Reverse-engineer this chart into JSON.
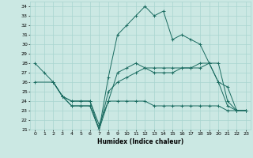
{
  "xlabel": "Humidex (Indice chaleur)",
  "bg_color": "#cbe8e3",
  "grid_color": "#a8d5cf",
  "line_color": "#1a6b60",
  "ylim": [
    21,
    34.5
  ],
  "xlim": [
    -0.5,
    23.5
  ],
  "yticks": [
    21,
    22,
    23,
    24,
    25,
    26,
    27,
    28,
    29,
    30,
    31,
    32,
    33,
    34
  ],
  "xticks": [
    0,
    1,
    2,
    3,
    4,
    5,
    6,
    7,
    8,
    9,
    10,
    11,
    12,
    13,
    14,
    15,
    16,
    17,
    18,
    19,
    20,
    21,
    22,
    23
  ],
  "series": [
    {
      "x": [
        0,
        1,
        2,
        3,
        4,
        5,
        6,
        7,
        8,
        9,
        10,
        11,
        12,
        13,
        14,
        15,
        16,
        17,
        18,
        19,
        20,
        21,
        22,
        23
      ],
      "y": [
        28,
        27,
        26,
        24.5,
        24,
        24,
        24,
        21,
        26.5,
        31,
        32,
        33,
        34,
        33,
        33.5,
        30.5,
        31,
        30.5,
        30,
        28,
        26,
        23.5,
        23,
        23
      ]
    },
    {
      "x": [
        0,
        2,
        3,
        4,
        5,
        6,
        7,
        8,
        9,
        10,
        11,
        12,
        13,
        14,
        15,
        16,
        17,
        18,
        19,
        20,
        21,
        22,
        23
      ],
      "y": [
        26,
        26,
        24.5,
        24,
        24,
        24,
        21.5,
        24,
        27,
        27.5,
        28,
        27.5,
        27,
        27,
        27,
        27.5,
        27.5,
        27.5,
        28,
        28,
        24,
        23,
        23
      ]
    },
    {
      "x": [
        2,
        3,
        4,
        5,
        6,
        7,
        8,
        9,
        10,
        11,
        12,
        13,
        14,
        15,
        16,
        17,
        18,
        19,
        20,
        21,
        22,
        23
      ],
      "y": [
        26,
        24.5,
        23.5,
        23.5,
        23.5,
        21,
        24,
        24,
        24,
        24,
        24,
        23.5,
        23.5,
        23.5,
        23.5,
        23.5,
        23.5,
        23.5,
        23.5,
        23,
        23,
        23
      ]
    },
    {
      "x": [
        2,
        3,
        4,
        5,
        6,
        7,
        8,
        9,
        10,
        11,
        12,
        13,
        14,
        15,
        16,
        17,
        18,
        19,
        20,
        21,
        22,
        23
      ],
      "y": [
        26,
        24.5,
        23.5,
        23.5,
        23.5,
        21,
        25,
        26,
        26.5,
        27,
        27.5,
        27.5,
        27.5,
        27.5,
        27.5,
        27.5,
        28,
        28,
        26,
        25.5,
        23,
        23
      ]
    }
  ]
}
